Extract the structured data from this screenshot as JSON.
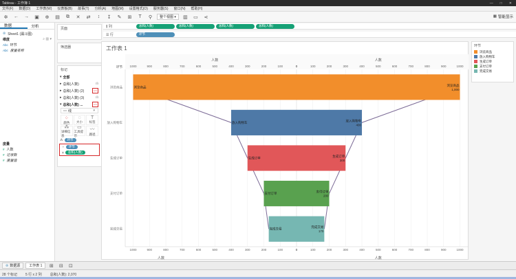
{
  "window": {
    "title": "Tableau - 工作簿 1"
  },
  "menu": [
    "文件(F)",
    "数据(D)",
    "工作表(W)",
    "仪表板(B)",
    "故事(T)",
    "分析(A)",
    "地图(M)",
    "设置格式(O)",
    "服务器(S)",
    "窗口(N)",
    "帮助(H)"
  ],
  "toolbar": {
    "view_select": "整个视图",
    "show_me": "智能显示"
  },
  "data_pane": {
    "tabs": [
      "数据",
      "分析"
    ],
    "source": "Sheet1 (漏斗图)",
    "dimensions_header": "维度",
    "dimensions": [
      {
        "type": "Abc",
        "name": "环节"
      },
      {
        "type": "Abc",
        "name": "度量名称"
      }
    ],
    "measures_header": "度量",
    "measures": [
      {
        "type": "#",
        "name": "人数"
      },
      {
        "type": "#",
        "name": "记录数"
      },
      {
        "type": "#",
        "name": "度量值"
      }
    ]
  },
  "cards": {
    "pages": "页面",
    "filters": "筛选器",
    "marks": "标记",
    "mark_rows": [
      "全部",
      "总和(人数)",
      "总和(人数) (2)",
      "总和(人数) (3)",
      "总和(人数) ..."
    ],
    "mark_type": "线",
    "buttons": [
      "颜色",
      "大小",
      "标签",
      "详细信息",
      "工具提示",
      "路径"
    ],
    "pills": [
      {
        "label": "环节",
        "color": "blue"
      },
      {
        "label": "环节",
        "color": "blue"
      },
      {
        "label": "总和(人数)",
        "color": "green"
      }
    ]
  },
  "shelves": {
    "columns_label": "列",
    "rows_label": "行",
    "columns_pills": [
      "总和(人数)",
      "总和(人数)",
      "总和(人数)",
      "总和(人数)"
    ],
    "rows_pills": [
      "环节"
    ]
  },
  "sheet": {
    "title": "工作表 1"
  },
  "chart_data": {
    "type": "bar",
    "subtype": "funnel",
    "row_header": "环节",
    "axis_left_label": "人数",
    "axis_right_label": "人数",
    "axis_left_ticks": [
      1000,
      900,
      800,
      700,
      600,
      500,
      400,
      300,
      200,
      100,
      0
    ],
    "axis_right_ticks": [
      0,
      100,
      200,
      300,
      400,
      500,
      600,
      700,
      800,
      900,
      1000
    ],
    "xlim": [
      0,
      1000
    ],
    "categories": [
      "浏览商品",
      "放入购物车",
      "生成订单",
      "支付订单",
      "完成交易"
    ],
    "values": [
      1000,
      400,
      300,
      200,
      170
    ],
    "value_labels": [
      "1,000",
      "400",
      "300",
      "200",
      "170"
    ],
    "colors": [
      "#F28E2B",
      "#4E79A7",
      "#E15759",
      "#59A14F",
      "#76B7B2"
    ],
    "line_color": "#7b6a96"
  },
  "legend": {
    "title": "环节",
    "items": [
      {
        "label": "浏览商品",
        "color": "#F28E2B"
      },
      {
        "label": "放入购物车",
        "color": "#4E79A7"
      },
      {
        "label": "生成订单",
        "color": "#E15759"
      },
      {
        "label": "支付订单",
        "color": "#59A14F"
      },
      {
        "label": "完成交易",
        "color": "#76B7B2"
      }
    ]
  },
  "bottom_tabs": [
    "数据源",
    "工作表 1"
  ],
  "status": [
    "28 个标记",
    "5 行 x 2 列",
    "总和(人数): 2,070"
  ]
}
